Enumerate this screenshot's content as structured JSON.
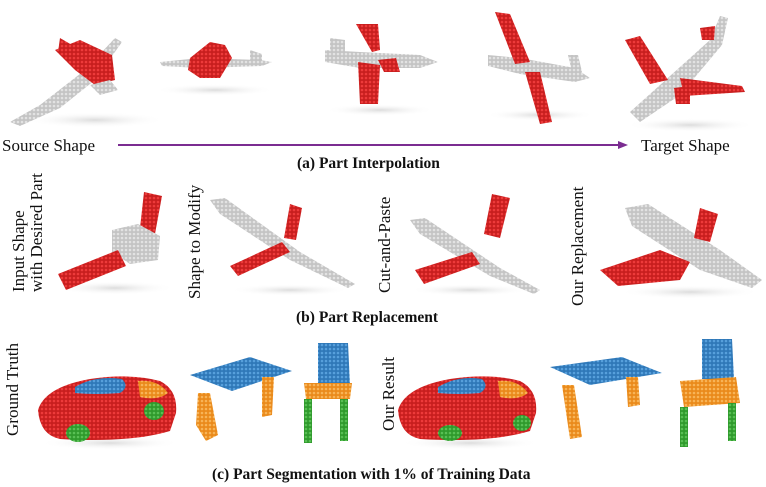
{
  "figure": {
    "row_a": {
      "source_label": "Source Shape",
      "target_label": "Target Shape",
      "caption": "(a) Part Interpolation",
      "arrow_color": "#7b2c91"
    },
    "row_b": {
      "labels": {
        "input_line1": "Input Shape",
        "input_line2": "with Desired Part",
        "shape_to_modify": "Shape to Modify",
        "cut_and_paste": "Cut-and-Paste",
        "our_replacement": "Our Replacement"
      },
      "caption": "(b) Part Replacement"
    },
    "row_c": {
      "labels": {
        "ground_truth": "Ground Truth",
        "our_result": "Our Result"
      },
      "caption": "(c) Part Segmentation with 1% of Training Data"
    },
    "colors": {
      "red_part": "#d62728",
      "gray_part": "#cfcfcf",
      "blue_part": "#3a87c8",
      "orange_part": "#f29b2a",
      "green_part": "#3da53a",
      "shadow": "#e6e6e6"
    }
  }
}
